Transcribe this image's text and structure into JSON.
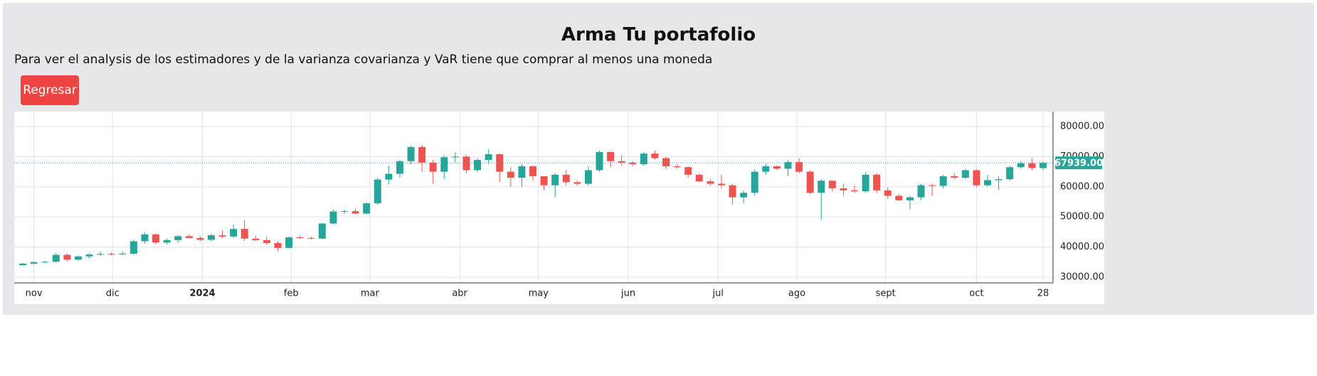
{
  "header": {
    "title": "Arma Tu portafolio",
    "message": "Para ver el analysis de los estimadores y de la varianza covarianza y VaR tiene que comprar al menos una moneda",
    "button": "Regresar"
  },
  "chart_data": {
    "type": "candlestick",
    "up_color": "#26a69a",
    "down_color": "#ef5350",
    "grid": true,
    "open": [
      34000,
      34500,
      35000,
      35100,
      37400,
      35800,
      36900,
      37500,
      37700,
      37600,
      37800,
      41900,
      44200,
      41500,
      42300,
      43600,
      43000,
      42400,
      43900,
      43500,
      46000,
      42800,
      42300,
      41300,
      39700,
      43200,
      43000,
      42800,
      47800,
      51800,
      51900,
      51100,
      54500,
      62400,
      64300,
      68500,
      73200,
      68000,
      65000,
      69800,
      70000,
      65500,
      68900,
      70800,
      65000,
      63000,
      66800,
      63500,
      60500,
      64000,
      61500,
      61000,
      65500,
      71500,
      68500,
      68000,
      67500,
      71000,
      69500,
      66800,
      66500,
      64000,
      61800,
      61000,
      60500,
      56500,
      58000,
      65000,
      66800,
      66000,
      68200,
      65000,
      58000,
      62000,
      59500,
      58800,
      58500,
      64000,
      58800,
      57000,
      55500,
      56500,
      60500,
      60300,
      63500,
      63000,
      65500,
      60500,
      62200,
      62500,
      66500,
      67800,
      66200
    ],
    "high": [
      34800,
      35200,
      35500,
      38000,
      37800,
      37200,
      37900,
      38500,
      38300,
      38500,
      42500,
      44800,
      44500,
      42800,
      44000,
      44200,
      43500,
      44500,
      45500,
      47500,
      49000,
      43700,
      43500,
      42000,
      43500,
      43800,
      43500,
      48000,
      52500,
      52500,
      52800,
      54800,
      63000,
      67000,
      69000,
      73500,
      73800,
      69000,
      70500,
      71500,
      70500,
      69500,
      72500,
      71000,
      66500,
      67500,
      67000,
      63500,
      64500,
      65500,
      62000,
      66800,
      72000,
      71800,
      70500,
      68500,
      71500,
      72000,
      70000,
      67500,
      66800,
      64500,
      62500,
      64000,
      61000,
      58800,
      65800,
      67500,
      67000,
      69000,
      69500,
      65500,
      62500,
      62000,
      61000,
      60500,
      64800,
      64500,
      59800,
      57500,
      57000,
      61000,
      61000,
      64000,
      64500,
      66000,
      65800,
      64000,
      63500,
      67000,
      68500,
      69500,
      68500
    ],
    "low": [
      33800,
      34200,
      34600,
      34900,
      35200,
      35500,
      36300,
      37000,
      37200,
      37300,
      37500,
      41200,
      40800,
      40900,
      41500,
      42900,
      42000,
      42000,
      43000,
      43000,
      42000,
      42000,
      40800,
      38700,
      39500,
      42700,
      42500,
      42600,
      47500,
      51000,
      51000,
      50800,
      54000,
      60800,
      63000,
      67500,
      65000,
      61000,
      62500,
      68000,
      64500,
      64800,
      67500,
      61500,
      60000,
      60000,
      62000,
      59000,
      56500,
      60500,
      60500,
      60500,
      65000,
      66500,
      67000,
      67000,
      67000,
      69000,
      66000,
      66000,
      63000,
      61500,
      60500,
      59500,
      54000,
      54500,
      57000,
      64000,
      65500,
      63500,
      64500,
      57500,
      49000,
      58500,
      57000,
      57900,
      58000,
      58000,
      56000,
      55500,
      52500,
      55500,
      57000,
      59500,
      62500,
      62500,
      60000,
      60000,
      59000,
      62000,
      66000,
      65500,
      65500
    ],
    "close": [
      34500,
      35000,
      35100,
      37400,
      35800,
      36900,
      37500,
      37700,
      37600,
      37800,
      41900,
      44200,
      41500,
      42300,
      43600,
      43000,
      42400,
      43900,
      43500,
      46000,
      42800,
      42300,
      41300,
      39700,
      43200,
      43000,
      42800,
      47800,
      51800,
      51900,
      51100,
      54500,
      62400,
      64300,
      68500,
      73200,
      68000,
      65000,
      69800,
      70000,
      65500,
      68900,
      70800,
      65000,
      63000,
      66800,
      63500,
      60500,
      64000,
      61500,
      61000,
      65500,
      71500,
      68500,
      68000,
      67500,
      71000,
      69500,
      66800,
      66500,
      64000,
      61800,
      61000,
      60500,
      56500,
      58000,
      65000,
      66800,
      66000,
      68200,
      65000,
      58000,
      62000,
      59500,
      58800,
      58500,
      64000,
      58800,
      57000,
      55500,
      56500,
      60500,
      60300,
      63500,
      63000,
      65500,
      60500,
      62200,
      62500,
      66500,
      67800,
      66200,
      67939
    ],
    "last_price": {
      "value": 67939,
      "label": "67939.00"
    },
    "xlim": [
      -0.77,
      92.9
    ],
    "xticks": [
      {
        "value": 1.0,
        "label": "nov"
      },
      {
        "value": 8.1,
        "label": "dic"
      },
      {
        "value": 16.2,
        "label": "2024",
        "bold": true
      },
      {
        "value": 24.2,
        "label": "feb"
      },
      {
        "value": 31.3,
        "label": "mar"
      },
      {
        "value": 39.4,
        "label": "abr"
      },
      {
        "value": 46.5,
        "label": "may"
      },
      {
        "value": 54.6,
        "label": "jun"
      },
      {
        "value": 62.7,
        "label": "jul"
      },
      {
        "value": 69.8,
        "label": "ago"
      },
      {
        "value": 77.8,
        "label": "sept"
      },
      {
        "value": 86.0,
        "label": "oct"
      },
      {
        "value": 92.0,
        "label": "28"
      }
    ],
    "ylim": [
      28100,
      84950
    ],
    "yticks": [
      {
        "value": 30000,
        "label": "30000.00"
      },
      {
        "value": 40000,
        "label": "40000.00"
      },
      {
        "value": 50000,
        "label": "50000.00"
      },
      {
        "value": 60000,
        "label": "60000.00"
      },
      {
        "value": 70000,
        "label": "70000.00"
      },
      {
        "value": 80000,
        "label": "80000.00"
      }
    ]
  }
}
